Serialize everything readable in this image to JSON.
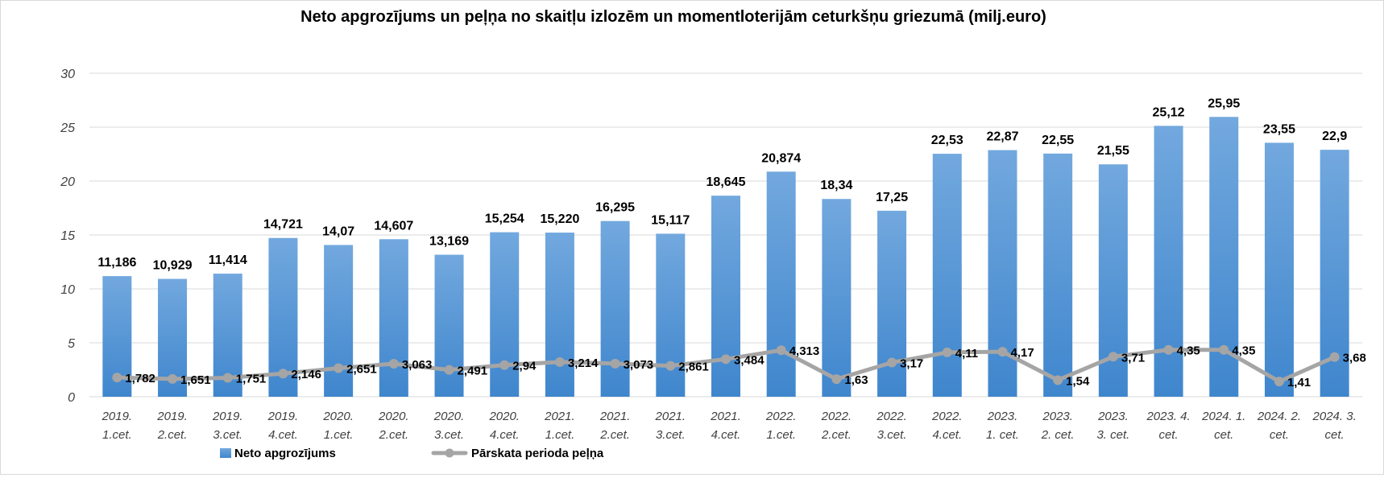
{
  "chart_data": {
    "type": "bar",
    "title": "Neto apgrozījums un peļņa no skaitļu izlozēm un momentloterijām  ceturkšņu griezumā (milj.euro)",
    "categories": [
      [
        "2019.",
        "1.cet."
      ],
      [
        "2019.",
        "2.cet."
      ],
      [
        "2019.",
        "3.cet."
      ],
      [
        "2019.",
        "4.cet."
      ],
      [
        "2020.",
        "1.cet."
      ],
      [
        "2020.",
        "2.cet."
      ],
      [
        "2020.",
        "3.cet."
      ],
      [
        "2020.",
        "4.cet."
      ],
      [
        "2021.",
        "1.cet."
      ],
      [
        "2021.",
        "2.cet."
      ],
      [
        "2021.",
        "3.cet."
      ],
      [
        "2021.",
        "4.cet."
      ],
      [
        "2022.",
        "1.cet."
      ],
      [
        "2022.",
        "2.cet."
      ],
      [
        "2022.",
        "3.cet."
      ],
      [
        "2022.",
        "4.cet."
      ],
      [
        "2023.",
        "1. cet."
      ],
      [
        "2023.",
        "2. cet."
      ],
      [
        "2023.",
        "3. cet."
      ],
      [
        "2023. 4.",
        "cet."
      ],
      [
        "2024. 1.",
        "cet."
      ],
      [
        "2024. 2.",
        "cet."
      ],
      [
        "2024. 3.",
        "cet."
      ]
    ],
    "ylim": [
      0,
      30
    ],
    "yticks": [
      "0",
      "5",
      "10",
      "15",
      "20",
      "25",
      "30"
    ],
    "grid": true,
    "legend_position": "bottom",
    "series": [
      {
        "name": "Neto apgrozījums",
        "kind": "bar",
        "color": "#5B9BD5",
        "values": [
          11.186,
          10.929,
          11.414,
          14.721,
          14.07,
          14.607,
          13.169,
          15.254,
          15.22,
          16.295,
          15.117,
          18.645,
          20.874,
          18.34,
          17.25,
          22.53,
          22.87,
          22.55,
          21.55,
          25.12,
          25.95,
          23.55,
          22.9
        ],
        "labels": [
          "11,186",
          "10,929",
          "11,414",
          "14,721",
          "14,07",
          "14,607",
          "13,169",
          "15,254",
          "15,220",
          "16,295",
          "15,117",
          "18,645",
          "20,874",
          "18,34",
          "17,25",
          "22,53",
          "22,87",
          "22,55",
          "21,55",
          "25,12",
          "25,95",
          "23,55",
          "22,9"
        ]
      },
      {
        "name": "Pārskata perioda peļņa",
        "kind": "line",
        "color": "#A5A5A5",
        "values": [
          1.782,
          1.651,
          1.751,
          2.146,
          2.651,
          3.063,
          2.491,
          2.94,
          3.214,
          3.073,
          2.861,
          3.484,
          4.313,
          1.63,
          3.17,
          4.11,
          4.17,
          1.54,
          3.71,
          4.35,
          4.35,
          1.41,
          3.68
        ],
        "labels": [
          "1,782",
          "1,651",
          "1,751",
          "2,146",
          "2,651",
          "3,063",
          "2,491",
          "2,94",
          "3,214",
          "3,073",
          "2,861",
          "3,484",
          "4,313",
          "1,63",
          "3,17",
          "4,11",
          "4,17",
          "1,54",
          "3,71",
          "4,35",
          "4,35",
          "1,41",
          "3,68"
        ]
      }
    ]
  }
}
